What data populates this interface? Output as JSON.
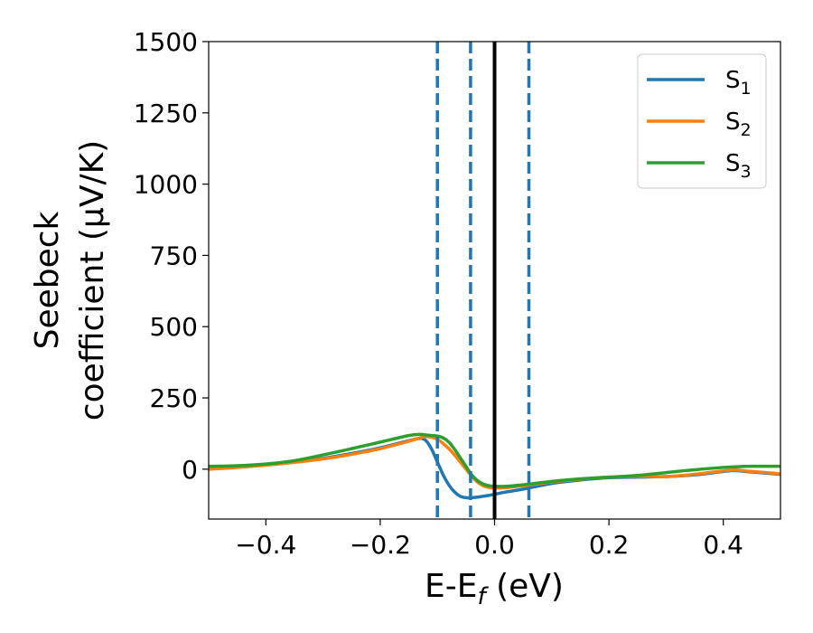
{
  "chart_data": {
    "type": "line",
    "title": "",
    "xlabel": "E-E",
    "xlabel_sub": "f",
    "xlabel_suffix": " (eV)",
    "ylabel_line1": "Seebeck",
    "ylabel_line2": "coefficient  (μV/K)",
    "xlim": [
      -0.5,
      0.5
    ],
    "ylim": [
      -175,
      1500
    ],
    "x_ticks": [
      -0.4,
      -0.2,
      0.0,
      0.2,
      0.4
    ],
    "x_tick_labels": [
      "−0.4",
      "−0.2",
      "0.0",
      "0.2",
      "0.4"
    ],
    "y_ticks": [
      0,
      250,
      500,
      750,
      1000,
      1250,
      1500
    ],
    "y_tick_labels": [
      "0",
      "250",
      "500",
      "750",
      "1000",
      "1250",
      "1500"
    ],
    "grid": false,
    "legend_position": "top-right",
    "solid_vline": {
      "x": 0.0,
      "color": "#000000"
    },
    "dashed_vlines": {
      "x": [
        -0.1,
        -0.042,
        0.06
      ],
      "color": "#1f77b4"
    },
    "series": [
      {
        "name": "S",
        "subscript": "1",
        "color": "#1f77b4",
        "x": [
          -0.5,
          -0.45,
          -0.4,
          -0.35,
          -0.3,
          -0.25,
          -0.2,
          -0.15,
          -0.13,
          -0.12,
          -0.11,
          -0.1,
          -0.09,
          -0.08,
          -0.07,
          -0.06,
          -0.05,
          -0.04,
          -0.03,
          -0.02,
          -0.01,
          0.0,
          0.02,
          0.05,
          0.1,
          0.15,
          0.2,
          0.25,
          0.3,
          0.35,
          0.4,
          0.42,
          0.45,
          0.5
        ],
        "y": [
          5,
          8,
          15,
          25,
          38,
          55,
          75,
          100,
          108,
          100,
          70,
          25,
          -20,
          -55,
          -80,
          -95,
          -100,
          -100,
          -98,
          -95,
          -92,
          -88,
          -80,
          -70,
          -50,
          -38,
          -30,
          -28,
          -26,
          -20,
          -8,
          -5,
          -10,
          -18
        ]
      },
      {
        "name": "S",
        "subscript": "2",
        "color": "#ff7f0e",
        "x": [
          -0.5,
          -0.45,
          -0.4,
          -0.35,
          -0.3,
          -0.25,
          -0.2,
          -0.15,
          -0.13,
          -0.12,
          -0.11,
          -0.1,
          -0.09,
          -0.08,
          -0.07,
          -0.06,
          -0.05,
          -0.04,
          -0.03,
          -0.02,
          -0.01,
          0.0,
          0.02,
          0.05,
          0.1,
          0.15,
          0.2,
          0.25,
          0.3,
          0.35,
          0.4,
          0.42,
          0.45,
          0.5
        ],
        "y": [
          0,
          6,
          14,
          24,
          36,
          52,
          72,
          98,
          110,
          115,
          112,
          105,
          90,
          72,
          50,
          25,
          0,
          -25,
          -45,
          -58,
          -64,
          -66,
          -65,
          -58,
          -45,
          -35,
          -28,
          -25,
          -26,
          -18,
          -6,
          -3,
          -8,
          -16
        ]
      },
      {
        "name": "S",
        "subscript": "3",
        "color": "#2ca02c",
        "x": [
          -0.5,
          -0.45,
          -0.4,
          -0.35,
          -0.3,
          -0.25,
          -0.2,
          -0.15,
          -0.13,
          -0.12,
          -0.11,
          -0.1,
          -0.09,
          -0.08,
          -0.07,
          -0.06,
          -0.05,
          -0.04,
          -0.03,
          -0.02,
          -0.01,
          0.0,
          0.02,
          0.05,
          0.1,
          0.15,
          0.2,
          0.25,
          0.3,
          0.35,
          0.4,
          0.42,
          0.45,
          0.5
        ],
        "y": [
          10,
          12,
          18,
          30,
          50,
          72,
          95,
          118,
          122,
          120,
          118,
          116,
          110,
          95,
          70,
          40,
          10,
          -20,
          -40,
          -52,
          -58,
          -60,
          -60,
          -55,
          -43,
          -34,
          -28,
          -22,
          -12,
          -2,
          6,
          8,
          10,
          10
        ]
      }
    ]
  }
}
